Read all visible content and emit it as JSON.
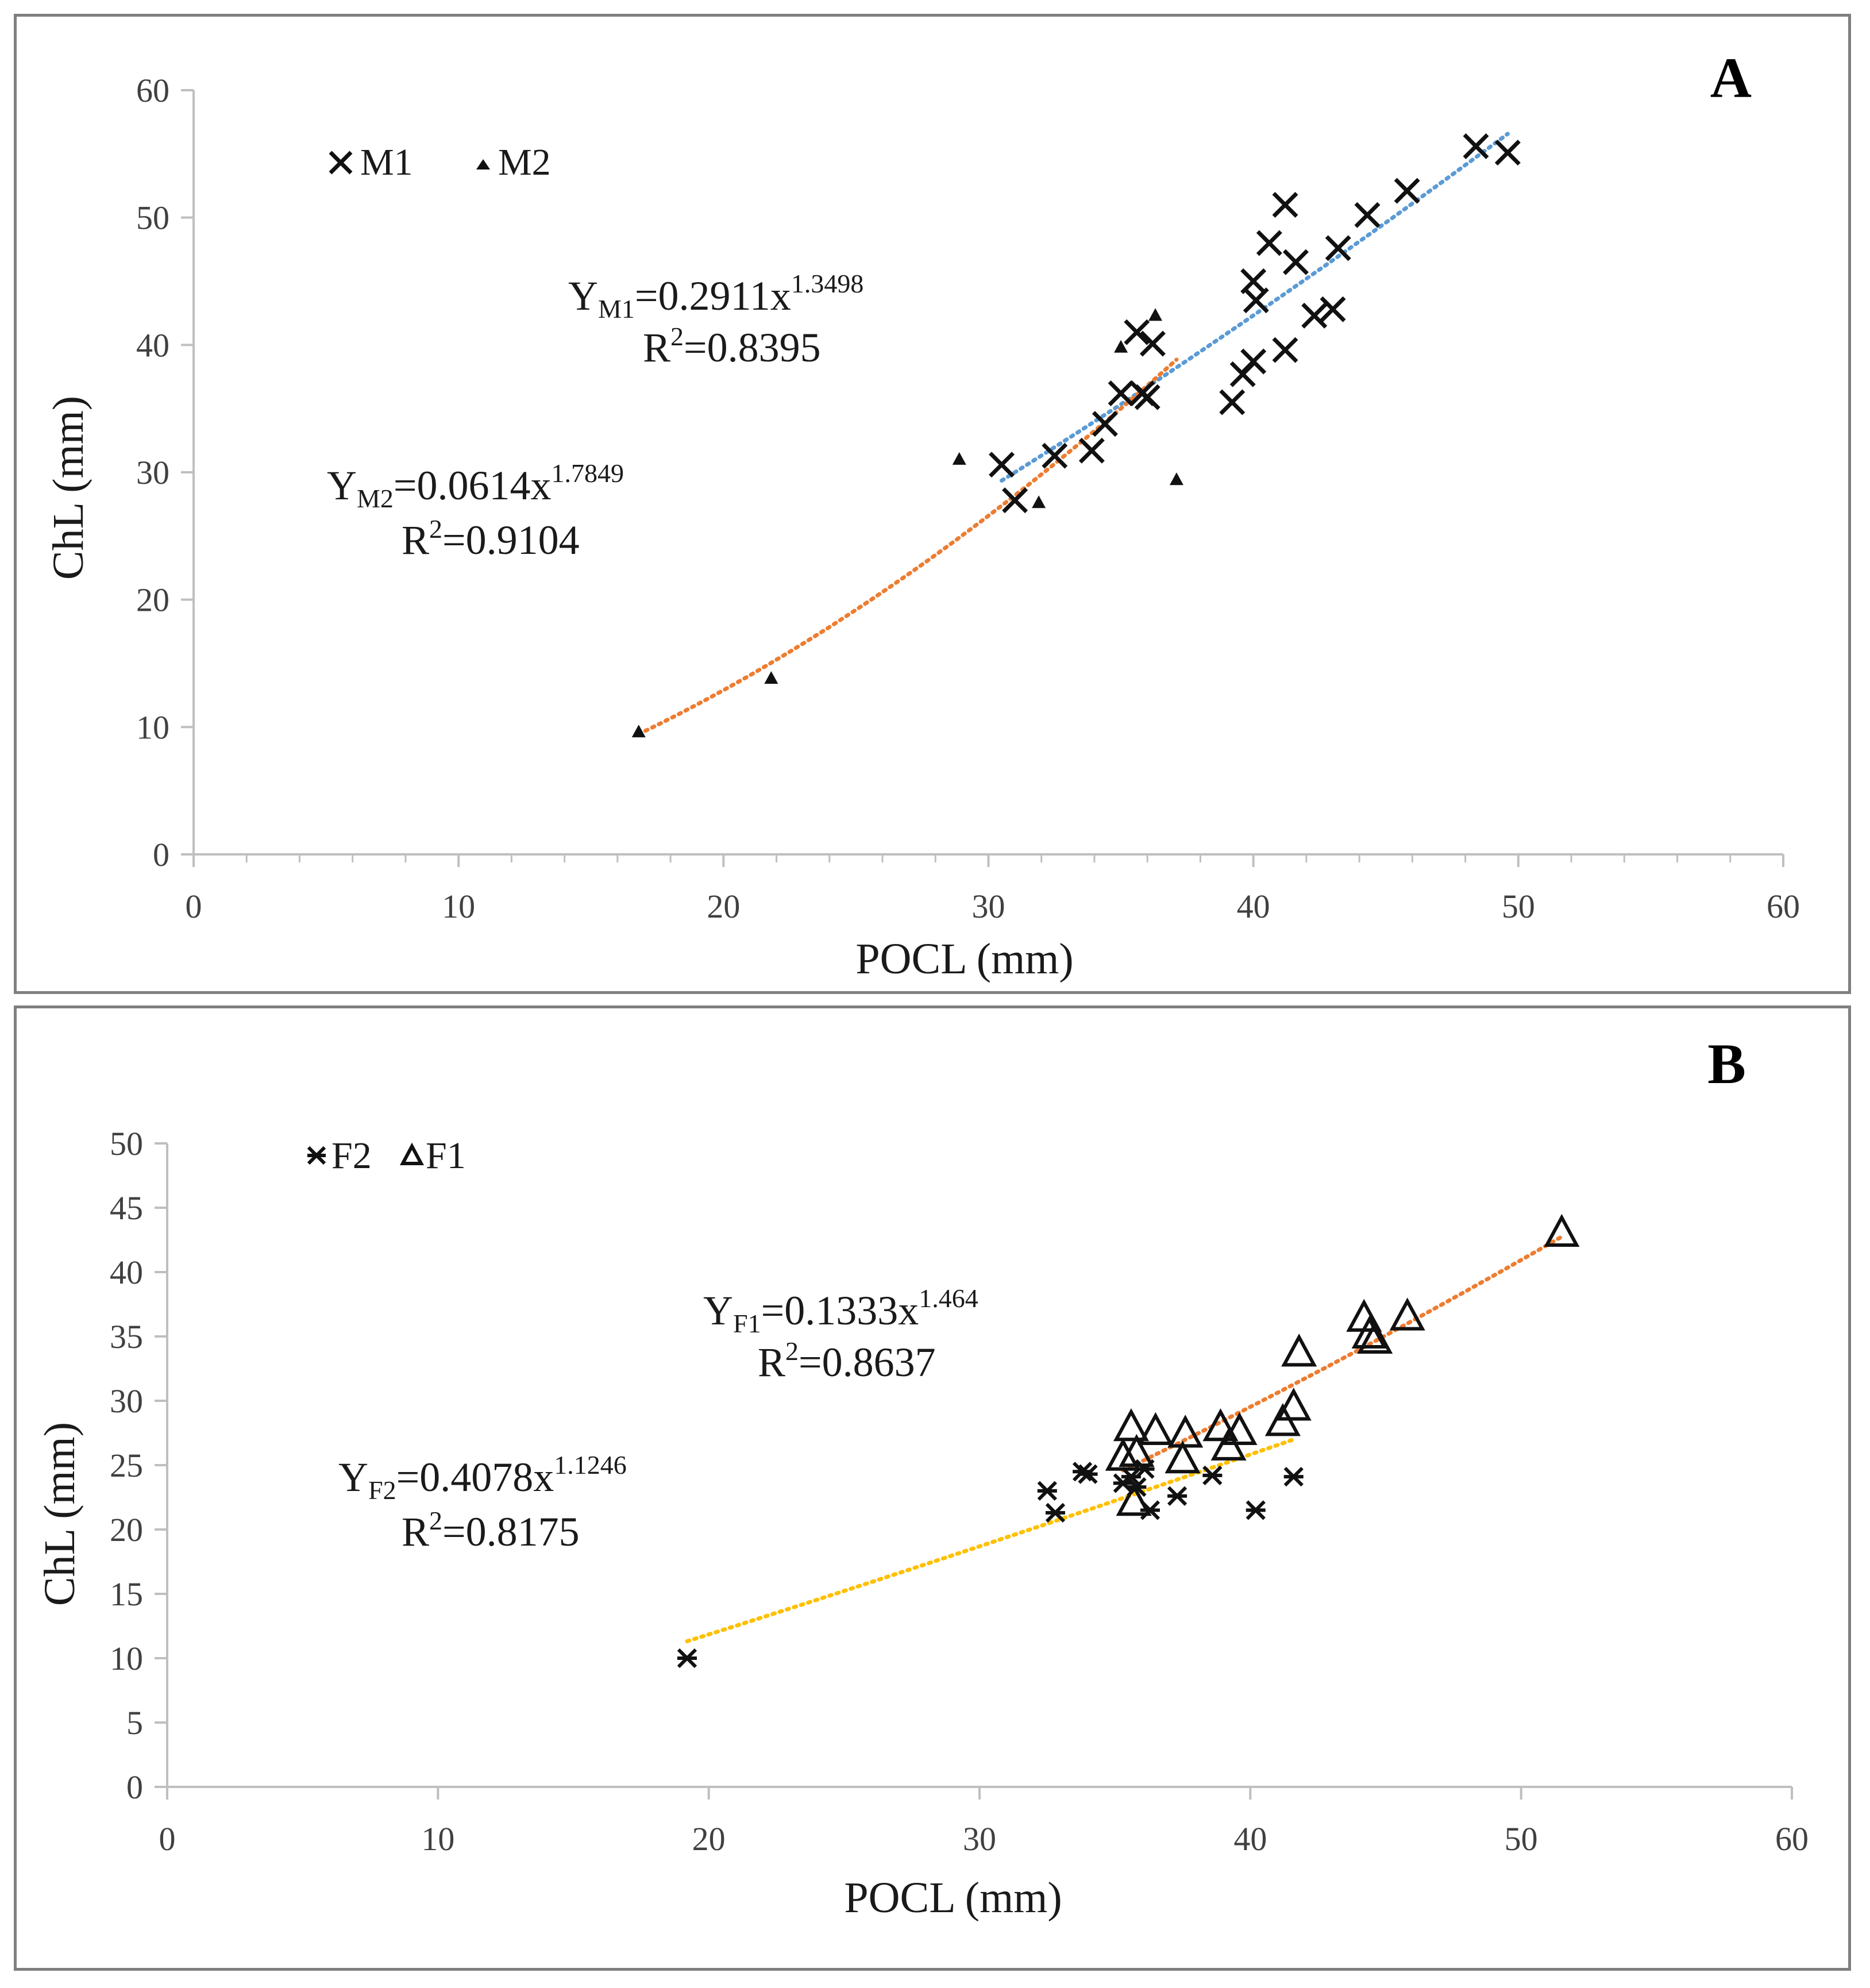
{
  "chart_data": [
    {
      "type": "scatter",
      "panel_label": "A",
      "xlabel": "POCL (mm)",
      "ylabel": "ChL (mm)",
      "xlim": [
        0,
        60
      ],
      "ylim": [
        0,
        60
      ],
      "xticks": [
        "0",
        "10",
        "20",
        "30",
        "40",
        "50",
        "60"
      ],
      "yticks": [
        "0",
        "10",
        "20",
        "30",
        "40",
        "50",
        "60"
      ],
      "legend": [
        {
          "name": "M1",
          "marker": "x"
        },
        {
          "name": "M2",
          "marker": "filled-triangle"
        }
      ],
      "series": [
        {
          "name": "M1",
          "marker": "x",
          "points": [
            [
              30.5,
              30.6
            ],
            [
              31.0,
              27.8
            ],
            [
              32.5,
              31.3
            ],
            [
              33.9,
              31.7
            ],
            [
              34.4,
              33.8
            ],
            [
              35.0,
              36.2
            ],
            [
              35.6,
              41.0
            ],
            [
              35.8,
              36.2
            ],
            [
              36.0,
              35.9
            ],
            [
              36.2,
              40.1
            ],
            [
              39.2,
              35.5
            ],
            [
              39.6,
              37.7
            ],
            [
              40.0,
              38.7
            ],
            [
              40.0,
              45.0
            ],
            [
              40.1,
              43.5
            ],
            [
              40.6,
              48.0
            ],
            [
              41.2,
              51.0
            ],
            [
              41.2,
              39.6
            ],
            [
              41.6,
              46.5
            ],
            [
              42.3,
              42.3
            ],
            [
              43.0,
              42.8
            ],
            [
              43.2,
              47.6
            ],
            [
              44.3,
              50.2
            ],
            [
              45.8,
              52.1
            ],
            [
              48.4,
              55.6
            ],
            [
              49.6,
              55.1
            ]
          ]
        },
        {
          "name": "M2",
          "marker": "filled-triangle",
          "points": [
            [
              16.8,
              9.6
            ],
            [
              21.8,
              13.8
            ],
            [
              28.9,
              31.0
            ],
            [
              31.9,
              27.6
            ],
            [
              35.0,
              39.8
            ],
            [
              36.3,
              42.3
            ],
            [
              37.1,
              29.4
            ]
          ]
        }
      ],
      "trendlines": [
        {
          "series": "M1",
          "a": 0.2911,
          "b": 1.3498,
          "x_range": [
            30.5,
            49.6
          ],
          "color": "#5b9bd5"
        },
        {
          "series": "M2",
          "a": 0.0614,
          "b": 1.7849,
          "x_range": [
            16.8,
            37.1
          ],
          "color": "#ed7d31"
        }
      ],
      "annotations": {
        "m1": {
          "y": "Y",
          "sub": "M1",
          "mid": "=0.2911x",
          "sup": "1.3498",
          "r_pre": "R",
          "r_sup": "2",
          "r_val": "=0.8395"
        },
        "m2": {
          "y": "Y",
          "sub": "M2",
          "mid": "=0.0614x",
          "sup": "1.7849",
          "r_pre": "R",
          "r_sup": "2",
          "r_val": "=0.9104"
        }
      }
    },
    {
      "type": "scatter",
      "panel_label": "B",
      "xlabel": "POCL (mm)",
      "ylabel": "ChL (mm)",
      "xlim": [
        0,
        60
      ],
      "ylim": [
        0,
        50
      ],
      "xticks": [
        "0",
        "10",
        "20",
        "30",
        "40",
        "50",
        "60"
      ],
      "yticks": [
        "0",
        "5",
        "10",
        "15",
        "20",
        "25",
        "30",
        "35",
        "40",
        "45",
        "50"
      ],
      "legend": [
        {
          "name": "F2",
          "marker": "asterisk"
        },
        {
          "name": "F1",
          "marker": "open-triangle"
        }
      ],
      "series": [
        {
          "name": "F2",
          "marker": "asterisk",
          "points": [
            [
              19.2,
              10.0
            ],
            [
              32.5,
              23.0
            ],
            [
              32.8,
              21.3
            ],
            [
              33.8,
              24.5
            ],
            [
              34.0,
              24.3
            ],
            [
              35.3,
              23.6
            ],
            [
              35.6,
              24.1
            ],
            [
              35.8,
              23.3
            ],
            [
              36.1,
              24.7
            ],
            [
              36.3,
              21.5
            ],
            [
              37.3,
              22.6
            ],
            [
              38.6,
              24.2
            ],
            [
              40.2,
              21.5
            ],
            [
              41.6,
              24.1
            ]
          ]
        },
        {
          "name": "F1",
          "marker": "open-triangle",
          "points": [
            [
              35.3,
              25.5
            ],
            [
              35.6,
              27.8
            ],
            [
              35.7,
              22.0
            ],
            [
              35.8,
              25.8
            ],
            [
              36.5,
              27.5
            ],
            [
              37.5,
              25.3
            ],
            [
              37.6,
              27.3
            ],
            [
              38.9,
              27.8
            ],
            [
              39.2,
              26.3
            ],
            [
              39.6,
              27.5
            ],
            [
              41.2,
              28.2
            ],
            [
              41.6,
              29.4
            ],
            [
              41.8,
              33.6
            ],
            [
              44.2,
              36.3
            ],
            [
              44.4,
              35.0
            ],
            [
              44.6,
              34.6
            ],
            [
              45.8,
              36.4
            ],
            [
              51.5,
              42.9
            ]
          ]
        }
      ],
      "trendlines": [
        {
          "series": "F1",
          "a": 0.1333,
          "b": 1.464,
          "x_range": [
            35.3,
            51.5
          ],
          "color": "#ed7d31"
        },
        {
          "series": "F2",
          "a": 0.4078,
          "b": 1.1246,
          "x_range": [
            19.2,
            41.6
          ],
          "color": "#ffc000"
        }
      ],
      "annotations": {
        "f1": {
          "y": "Y",
          "sub": "F1",
          "mid": "=0.1333x",
          "sup": "1.464",
          "r_pre": "R",
          "r_sup": "2",
          "r_val": "=0.8637"
        },
        "f2": {
          "y": "Y",
          "sub": "F2",
          "mid": "=0.4078x",
          "sup": "1.1246",
          "r_pre": "R",
          "r_sup": "2",
          "r_val": "=0.8175"
        }
      }
    }
  ]
}
